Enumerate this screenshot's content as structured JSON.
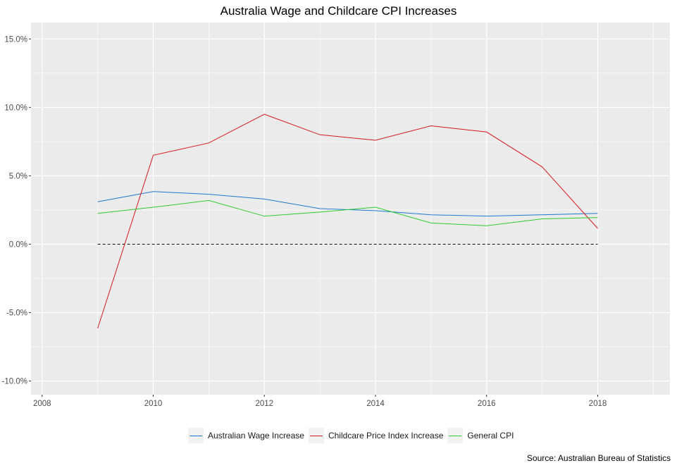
{
  "chart_data": {
    "type": "line",
    "title": "Australia Wage and Childcare CPI Increases",
    "caption": "Source: Australian Bureau of Statistics",
    "xlabel": "",
    "ylabel": "",
    "x": [
      2009,
      2010,
      2011,
      2012,
      2013,
      2014,
      2015,
      2016,
      2017,
      2018
    ],
    "xlim": [
      2007.8,
      2019.3
    ],
    "ylim": [
      -11.0,
      16.2
    ],
    "x_ticks": [
      2008,
      2010,
      2012,
      2014,
      2016,
      2018
    ],
    "x_tick_labels": [
      "2008",
      "2010",
      "2012",
      "2014",
      "2016",
      "2018"
    ],
    "y_ticks": [
      -10,
      -5,
      0,
      5,
      10,
      15
    ],
    "y_tick_labels": [
      "-10.0%",
      "-5.0%",
      "0.0%",
      "5.0%",
      "10.0%",
      "15.0%"
    ],
    "grid": true,
    "legend_position": "bottom",
    "reference_line": {
      "y": 0,
      "style": "dashed",
      "color": "#000000",
      "x_range": [
        2009,
        2018
      ]
    },
    "series": [
      {
        "name": "Australian Wage Increase",
        "color": "#1f78d1",
        "values": [
          3.1,
          3.85,
          3.65,
          3.3,
          2.6,
          2.45,
          2.15,
          2.05,
          2.15,
          2.25
        ]
      },
      {
        "name": "Childcare Price Index Increase",
        "color": "#d7191c",
        "values": [
          -6.15,
          6.5,
          7.4,
          9.5,
          8.0,
          7.6,
          8.65,
          8.2,
          5.65,
          1.15
        ]
      },
      {
        "name": "General CPI",
        "color": "#2ecc2e",
        "values": [
          2.25,
          2.7,
          3.2,
          2.05,
          2.35,
          2.7,
          1.55,
          1.35,
          1.85,
          1.95
        ]
      }
    ]
  }
}
